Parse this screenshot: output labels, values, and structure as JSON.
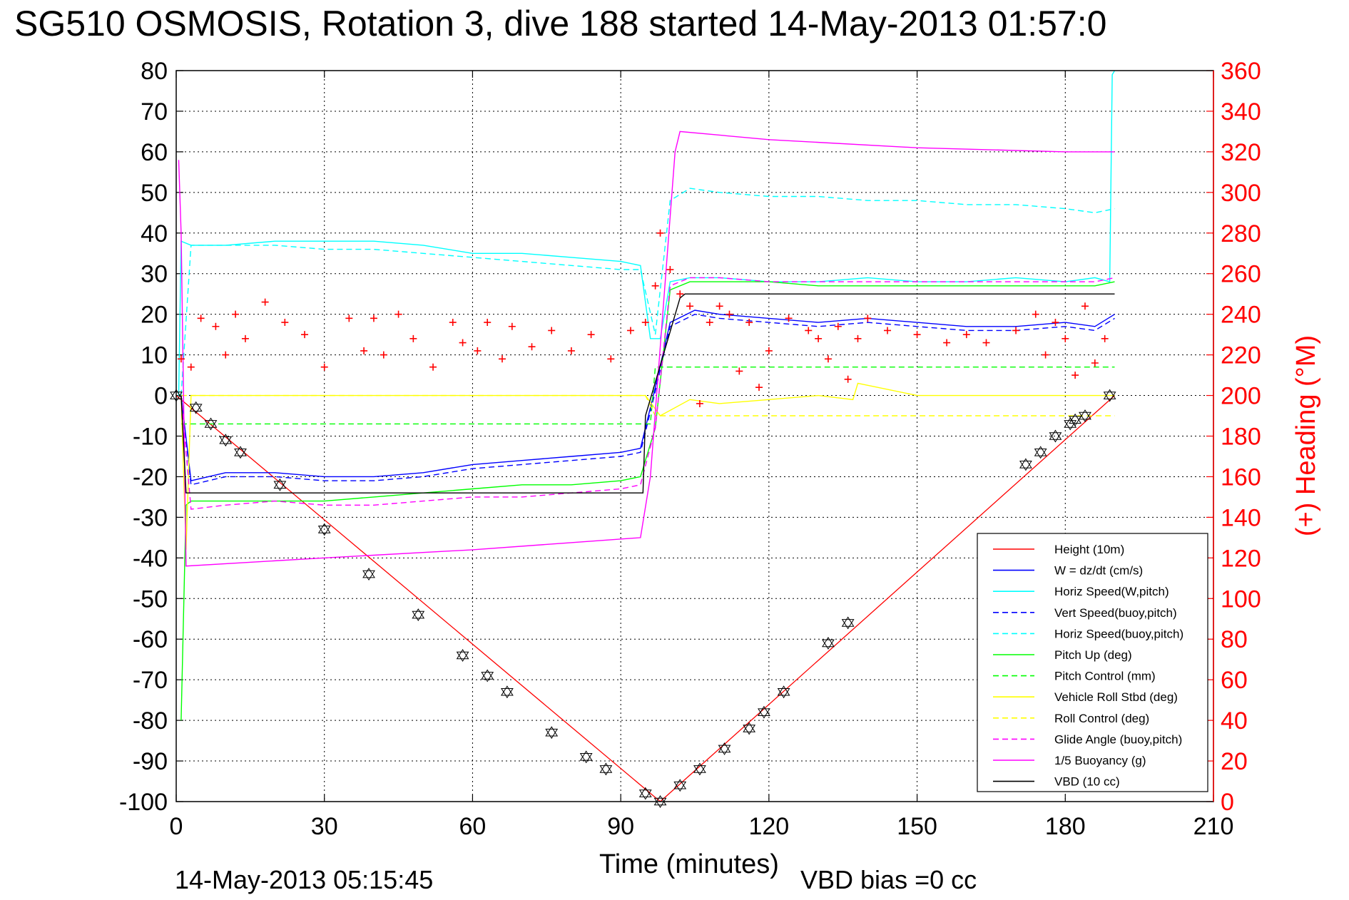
{
  "chart_data": {
    "type": "line",
    "title": "SG510 OSMOSIS, Rotation 3, dive 188 started 14-May-2013 01:57:0",
    "xlabel": "Time (minutes)",
    "ylabel_right": "(+) Heading (°M)",
    "timestamp": "14-May-2013 05:15:45",
    "vbd_bias": "VBD bias =0 cc",
    "xlim": [
      0,
      210
    ],
    "ylim": [
      -100,
      80
    ],
    "ylim_right": [
      0,
      360
    ],
    "x_ticks": [
      "0",
      "30",
      "60",
      "90",
      "120",
      "150",
      "180",
      "210"
    ],
    "y_ticks": [
      "80",
      "70",
      "60",
      "50",
      "40",
      "30",
      "20",
      "10",
      "0",
      "-10",
      "-20",
      "-30",
      "-40",
      "-50",
      "-60",
      "-70",
      "-80",
      "-90",
      "-100"
    ],
    "y_ticks_right": [
      "360",
      "340",
      "320",
      "300",
      "280",
      "260",
      "240",
      "220",
      "200",
      "180",
      "160",
      "140",
      "120",
      "100",
      "80",
      "60",
      "40",
      "20",
      "0"
    ],
    "grid": true,
    "legend_position": "lower-right",
    "colors": {
      "red": "#ff0000",
      "blue": "#0000ff",
      "cyan": "#00ffff",
      "green": "#00ff00",
      "yellow": "#ffff00",
      "magenta": "#ff00ff",
      "black": "#000000"
    },
    "series": [
      {
        "name": "Height (10m)",
        "color": "#ff0000",
        "style": "solid",
        "x": [
          0,
          98,
          190
        ],
        "y": [
          0,
          -100,
          0
        ]
      },
      {
        "name": "W = dz/dt (cm/s)",
        "color": "#0000ff",
        "style": "solid",
        "x": [
          1,
          3,
          10,
          20,
          30,
          40,
          50,
          60,
          70,
          80,
          90,
          94,
          97,
          100,
          105,
          110,
          120,
          130,
          140,
          150,
          160,
          170,
          180,
          186,
          190
        ],
        "y": [
          0,
          -21,
          -19,
          -19,
          -20,
          -20,
          -19,
          -17,
          -16,
          -15,
          -14,
          -13,
          2,
          18,
          21,
          20,
          19,
          18,
          19,
          18,
          17,
          17,
          18,
          17,
          20
        ]
      },
      {
        "name": "Horiz Speed(W,pitch)",
        "color": "#00ffff",
        "style": "solid",
        "x": [
          0.5,
          1,
          3,
          10,
          20,
          30,
          40,
          50,
          60,
          70,
          80,
          90,
          94,
          96,
          98,
          100,
          104,
          110,
          120,
          130,
          140,
          150,
          160,
          170,
          180,
          186,
          189,
          189.5,
          190
        ],
        "y": [
          0,
          38,
          37,
          37,
          38,
          38,
          38,
          37,
          35,
          35,
          34,
          33,
          32,
          14,
          14,
          28,
          29,
          29,
          28,
          28,
          29,
          28,
          28,
          29,
          28,
          29,
          28,
          79,
          80
        ]
      },
      {
        "name": "Vert Speed(buoy,pitch)",
        "color": "#0000ff",
        "style": "dashed",
        "x": [
          1,
          3,
          10,
          20,
          30,
          40,
          50,
          60,
          70,
          80,
          90,
          94,
          97,
          100,
          105,
          110,
          120,
          130,
          140,
          150,
          160,
          170,
          180,
          186,
          190
        ],
        "y": [
          0,
          -22,
          -20,
          -20,
          -21,
          -21,
          -20,
          -18,
          -17,
          -16,
          -15,
          -14,
          1,
          17,
          20,
          19,
          18,
          17,
          18,
          17,
          16,
          16,
          17,
          16,
          19
        ]
      },
      {
        "name": "Horiz Speed(buoy,pitch)",
        "color": "#00ffff",
        "style": "dashed",
        "x": [
          1,
          3,
          10,
          20,
          30,
          40,
          50,
          60,
          70,
          80,
          90,
          94,
          97,
          100,
          104,
          110,
          120,
          130,
          140,
          150,
          160,
          170,
          180,
          186,
          190
        ],
        "y": [
          0,
          37,
          37,
          37,
          36,
          36,
          35,
          34,
          33,
          32,
          31,
          31,
          15,
          48,
          51,
          50,
          49,
          49,
          48,
          48,
          47,
          47,
          46,
          45,
          46
        ]
      },
      {
        "name": "Pitch Up (deg)",
        "color": "#00ff00",
        "style": "solid",
        "x": [
          1,
          2,
          3,
          10,
          20,
          30,
          40,
          50,
          60,
          70,
          80,
          90,
          94,
          97,
          100,
          104,
          110,
          120,
          130,
          140,
          150,
          160,
          170,
          180,
          186,
          190
        ],
        "y": [
          -80,
          -27,
          -26,
          -26,
          -26,
          -26,
          -25,
          -24,
          -23,
          -22,
          -22,
          -21,
          -20,
          -8,
          26,
          28,
          28,
          28,
          27,
          27,
          27,
          27,
          27,
          27,
          27,
          28
        ]
      },
      {
        "name": "Pitch Control (mm)",
        "color": "#00ff00",
        "style": "dashed",
        "x": [
          1,
          3,
          94,
          96,
          97,
          190
        ],
        "y": [
          -7,
          -7,
          -7,
          -7,
          7,
          7
        ]
      },
      {
        "name": "Vehicle Roll Stbd (deg)",
        "color": "#ffff00",
        "style": "solid",
        "x": [
          1,
          2,
          3,
          20,
          40,
          60,
          80,
          95,
          98,
          104,
          110,
          120,
          130,
          137,
          138,
          150,
          170,
          175,
          180,
          186,
          190
        ],
        "y": [
          0,
          -38,
          0,
          0,
          0,
          0,
          0,
          0,
          -5,
          -1,
          -2,
          -1,
          0,
          -1,
          3,
          0,
          0,
          0,
          0,
          0,
          0
        ]
      },
      {
        "name": "Roll Control (deg)",
        "color": "#ffff00",
        "style": "dashed",
        "x": [
          1,
          95,
          97,
          190
        ],
        "y": [
          0,
          0,
          -5,
          -5
        ]
      },
      {
        "name": "Glide Angle (buoy,pitch)",
        "color": "#ff00ff",
        "style": "dashed",
        "x": [
          1,
          3,
          10,
          20,
          30,
          40,
          50,
          60,
          70,
          80,
          90,
          94,
          97,
          100,
          104,
          110,
          120,
          130,
          140,
          150,
          160,
          170,
          180,
          186,
          190
        ],
        "y": [
          0,
          -28,
          -27,
          -26,
          -27,
          -27,
          -26,
          -25,
          -25,
          -24,
          -23,
          -22,
          -8,
          27,
          29,
          29,
          28,
          28,
          28,
          28,
          28,
          28,
          28,
          28,
          29
        ]
      },
      {
        "name": "1/5 Buoyancy (g)",
        "color": "#ff00ff",
        "style": "solid",
        "x": [
          0.5,
          1,
          2,
          30,
          60,
          94,
          96,
          101,
          102,
          120,
          150,
          180,
          190
        ],
        "y": [
          58,
          40,
          -42,
          -40,
          -38,
          -35,
          -20,
          60,
          65,
          63,
          61,
          60,
          60
        ]
      },
      {
        "name": "VBD (10 cc)",
        "color": "#000000",
        "style": "solid",
        "x": [
          1,
          2,
          3,
          94.5,
          95,
          102,
          103,
          190
        ],
        "y": [
          0,
          -24,
          -24,
          -24,
          -5,
          24,
          25,
          25
        ]
      }
    ],
    "heading_markers": {
      "name": "Heading (°M)",
      "color": "#ff0000",
      "marker": "+",
      "axis": "right",
      "x": [
        1,
        3,
        5,
        8,
        10,
        12,
        14,
        18,
        22,
        26,
        30,
        35,
        38,
        40,
        42,
        45,
        48,
        52,
        56,
        58,
        61,
        63,
        66,
        68,
        72,
        76,
        80,
        84,
        88,
        92,
        95,
        97,
        98,
        100,
        102,
        104,
        106,
        108,
        110,
        112,
        114,
        116,
        118,
        120,
        124,
        128,
        130,
        132,
        134,
        136,
        138,
        140,
        144,
        150,
        156,
        160,
        164,
        170,
        174,
        176,
        178,
        180,
        182,
        184,
        186,
        188
      ],
      "y": [
        218,
        214,
        238,
        234,
        220,
        240,
        228,
        246,
        236,
        230,
        214,
        238,
        222,
        238,
        220,
        240,
        228,
        214,
        236,
        226,
        222,
        236,
        218,
        234,
        224,
        232,
        222,
        230,
        218,
        232,
        236,
        254,
        280,
        262,
        250,
        244,
        196,
        236,
        244,
        240,
        212,
        236,
        204,
        222,
        238,
        232,
        228,
        218,
        234,
        208,
        228,
        238,
        232,
        230,
        226,
        230,
        226,
        232,
        240,
        220,
        236,
        228,
        210,
        244,
        216,
        228
      ]
    },
    "triangle_markers": {
      "marker": "triangle",
      "color": "#000000",
      "x": [
        0,
        4,
        7,
        10,
        13,
        21,
        30,
        39,
        49,
        58,
        63,
        67,
        76,
        83,
        87,
        95,
        98,
        102,
        106,
        111,
        116,
        119,
        123,
        132,
        136,
        172,
        175,
        178,
        181,
        182,
        184,
        189
      ],
      "y": [
        0,
        -3,
        -7,
        -11,
        -14,
        -22,
        -33,
        -44,
        -54,
        -64,
        -69,
        -73,
        -83,
        -89,
        -92,
        -98,
        -100,
        -96,
        -92,
        -87,
        -82,
        -78,
        -73,
        -61,
        -56,
        -17,
        -14,
        -10,
        -7,
        -6,
        -5,
        0
      ]
    }
  }
}
